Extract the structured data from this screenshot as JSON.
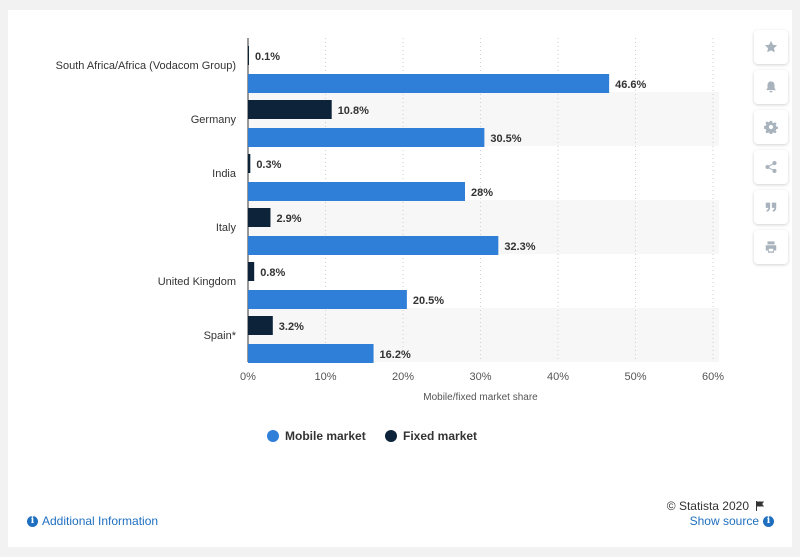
{
  "chart_data": {
    "type": "bar",
    "orientation": "horizontal",
    "categories": [
      "South Africa/Africa (Vodacom Group)",
      "Germany",
      "India",
      "Italy",
      "United Kingdom",
      "Spain*"
    ],
    "series": [
      {
        "name": "Fixed market",
        "values": [
          0.1,
          10.8,
          0.3,
          2.9,
          0.8,
          3.2
        ],
        "labels": [
          "0.1%",
          "10.8%",
          "0.3%",
          "2.9%",
          "0.8%",
          "3.2%"
        ]
      },
      {
        "name": "Mobile market",
        "values": [
          46.6,
          30.5,
          28,
          32.3,
          20.5,
          16.2
        ],
        "labels": [
          "46.6%",
          "30.5%",
          "28%",
          "32.3%",
          "20.5%",
          "16.2%"
        ]
      }
    ],
    "xlabel": "Mobile/fixed market share",
    "xlim": [
      0,
      60
    ],
    "ticks": [
      0,
      10,
      20,
      30,
      40,
      50,
      60
    ],
    "tick_labels": [
      "0%",
      "10%",
      "20%",
      "30%",
      "40%",
      "50%",
      "60%"
    ],
    "grid": "vertical-dotted",
    "legend_position": "bottom-center",
    "legend_order": [
      "Mobile market",
      "Fixed market"
    ],
    "colors": {
      "Mobile market": "#2f7ed8",
      "Fixed market": "#0d233a"
    }
  },
  "toolbar": {
    "icons": [
      "star-icon",
      "bell-icon",
      "gear-icon",
      "share-icon",
      "quote-icon",
      "print-icon"
    ]
  },
  "footer": {
    "additional_info": "Additional Information",
    "show_source": "Show source",
    "credit": "© Statista 2020"
  }
}
